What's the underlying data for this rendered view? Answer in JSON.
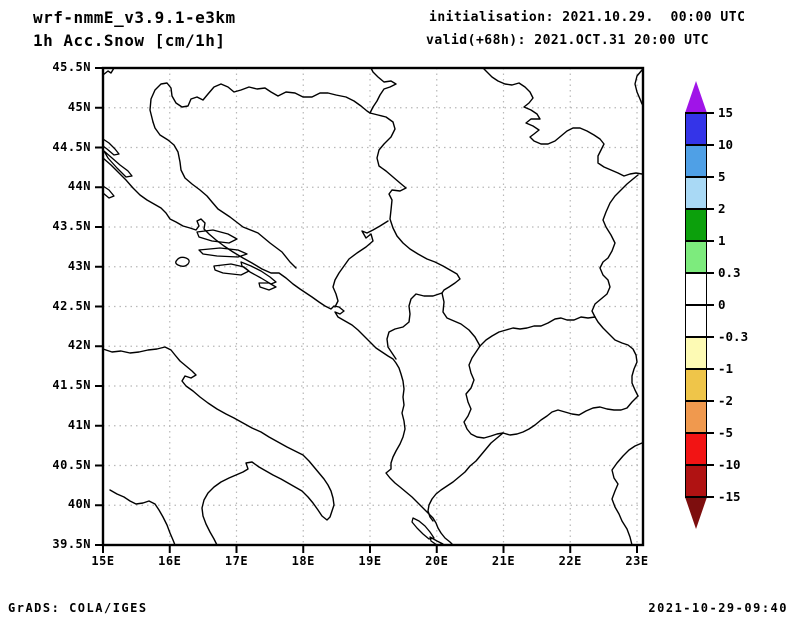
{
  "header": {
    "title_line1": "wrf-nmmE_v3.9.1-e3km",
    "title_line2": "1h Acc.Snow [cm/1h]",
    "init_line": "initialisation: 2021.10.29.  00:00 UTC",
    "valid_line": "valid(+68h): 2021.OCT.31 20:00 UTC"
  },
  "map": {
    "lat_ticks": [
      "45.5N",
      "45N",
      "44.5N",
      "44N",
      "43.5N",
      "43N",
      "42.5N",
      "42N",
      "41.5N",
      "41N",
      "40.5N",
      "40N",
      "39.5N"
    ],
    "lon_ticks": [
      "15E",
      "16E",
      "17E",
      "18E",
      "19E",
      "20E",
      "21E",
      "22E",
      "23E"
    ]
  },
  "colorbar": {
    "labels": [
      "15",
      "10",
      "5",
      "2",
      "1",
      "0.3",
      "0",
      "-0.3",
      "-1",
      "-2",
      "-5",
      "-10",
      "-15"
    ],
    "band_colors_top_to_bottom": [
      "#3434e8",
      "#4fa0e6",
      "#a9d9f5",
      "#0ca00c",
      "#7deb7d",
      "#ffffff",
      "#ffffff",
      "#fdfab4",
      "#efc549",
      "#f0994e",
      "#f21414",
      "#b01212"
    ],
    "top_arrow_color": "#a014e8",
    "bottom_arrow_color": "#7d0e0e"
  },
  "footer": {
    "left": "GrADS: COLA/IGES",
    "right": "2021-10-29-09:40"
  },
  "chart_data": {
    "type": "map",
    "title": "1h Acc.Snow [cm/1h]",
    "model": "wrf-nmmE_v3.9.1-e3km",
    "region": "Adriatic / Balkans",
    "lon_range_deg_east": [
      15,
      23
    ],
    "lat_range_deg_north": [
      39.5,
      45.5
    ],
    "grid_interval_lat_deg": 0.5,
    "grid_interval_lon_deg": 1.0,
    "colorbar_levels": [
      15,
      10,
      5,
      2,
      1,
      0.3,
      0,
      -0.3,
      -1,
      -2,
      -5,
      -10,
      -15
    ],
    "visible_shading": "none (no shaded snow field on map)"
  }
}
